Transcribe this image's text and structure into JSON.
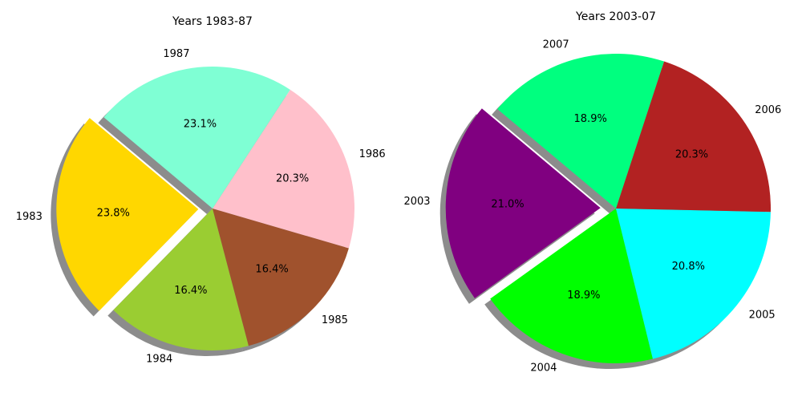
{
  "chart_data": [
    {
      "type": "pie",
      "title": "Years 1983-87",
      "labels": [
        "1983",
        "1984",
        "1985",
        "1986",
        "1987"
      ],
      "values": [
        23.8,
        16.4,
        16.4,
        20.3,
        23.1
      ],
      "percent_labels": [
        "23.8%",
        "16.4%",
        "16.4%",
        "20.3%",
        "23.1%"
      ],
      "colors": [
        "#ffd700",
        "#9acd32",
        "#a0522d",
        "#ffc0cb",
        "#7fffd4"
      ],
      "explode": [
        0.1,
        0,
        0,
        0,
        0
      ],
      "start_angle_deg": 140,
      "direction": "counterclockwise",
      "shadow": true
    },
    {
      "type": "pie",
      "title": "Years 2003-07",
      "labels": [
        "2003",
        "2004",
        "2005",
        "2006",
        "2007"
      ],
      "values": [
        21.0,
        18.9,
        20.8,
        20.3,
        18.9
      ],
      "percent_labels": [
        "21.0%",
        "18.9%",
        "20.8%",
        "20.3%",
        "18.9%"
      ],
      "colors": [
        "#800080",
        "#00ff00",
        "#00ffff",
        "#b22222",
        "#00ff7f"
      ],
      "explode": [
        0.1,
        0,
        0,
        0,
        0
      ],
      "start_angle_deg": 140,
      "direction": "counterclockwise",
      "shadow": true
    }
  ]
}
